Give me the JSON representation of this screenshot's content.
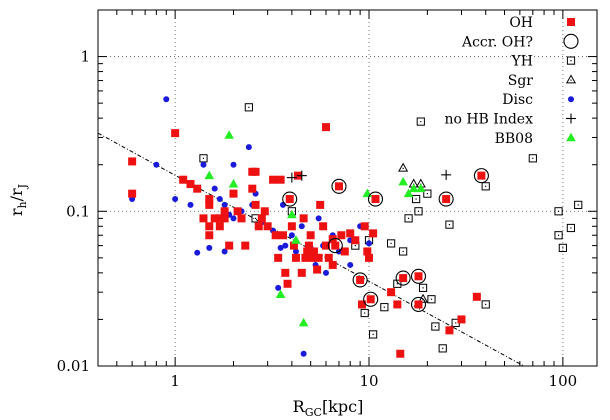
{
  "chart_data": {
    "type": "scatter",
    "xlabel_main": "R",
    "xlabel_sub": "GC",
    "xlabel_unit": "[kpc]",
    "ylabel_main": "r",
    "ylabel_sub1": "h",
    "ylabel_sep": "/r",
    "ylabel_sub2": "J",
    "xscale": "log",
    "yscale": "log",
    "xlim": [
      0.4,
      150
    ],
    "ylim": [
      0.01,
      2
    ],
    "grid": "dotted, at major decades",
    "legend_position": "top-right",
    "x_ticks": [
      1,
      10,
      100
    ],
    "x_tick_labels": [
      "1",
      "10",
      "100"
    ],
    "y_ticks": [
      0.01,
      0.1,
      1
    ],
    "y_tick_labels": [
      "0.01",
      "0.1",
      "1"
    ],
    "trend_line": {
      "style": "dash-dot",
      "points": [
        [
          0.4,
          0.32
        ],
        [
          70,
          0.0093
        ]
      ]
    },
    "series": [
      {
        "name": "OH",
        "marker": "filled-square",
        "color": "#ee1111",
        "points": [
          [
            0.6,
            0.21
          ],
          [
            0.6,
            0.13
          ],
          [
            1.0,
            0.32
          ],
          [
            1.1,
            0.16
          ],
          [
            1.2,
            0.15
          ],
          [
            1.3,
            0.14
          ],
          [
            1.4,
            0.09
          ],
          [
            1.5,
            0.11
          ],
          [
            1.5,
            0.12
          ],
          [
            1.5,
            0.08
          ],
          [
            1.5,
            0.07
          ],
          [
            1.6,
            0.09
          ],
          [
            1.7,
            0.09
          ],
          [
            1.7,
            0.08
          ],
          [
            1.8,
            0.1
          ],
          [
            1.8,
            0.09
          ],
          [
            1.9,
            0.06
          ],
          [
            2.0,
            0.13
          ],
          [
            2.1,
            0.1
          ],
          [
            2.2,
            0.09
          ],
          [
            2.3,
            0.06
          ],
          [
            2.5,
            0.18
          ],
          [
            2.5,
            0.14
          ],
          [
            2.6,
            0.18
          ],
          [
            2.6,
            0.11
          ],
          [
            2.7,
            0.08
          ],
          [
            2.8,
            0.09
          ],
          [
            2.9,
            0.1
          ],
          [
            3.0,
            0.08
          ],
          [
            3.2,
            0.16
          ],
          [
            3.3,
            0.07
          ],
          [
            3.4,
            0.05
          ],
          [
            3.5,
            0.16
          ],
          [
            3.6,
            0.07
          ],
          [
            3.7,
            0.04
          ],
          [
            3.8,
            0.034
          ],
          [
            3.9,
            0.12
          ],
          [
            4.0,
            0.08
          ],
          [
            4.1,
            0.06
          ],
          [
            4.2,
            0.05
          ],
          [
            4.3,
            0.17
          ],
          [
            4.5,
            0.04
          ],
          [
            4.6,
            0.09
          ],
          [
            4.7,
            0.05
          ],
          [
            4.8,
            0.055
          ],
          [
            4.9,
            0.06
          ],
          [
            5.0,
            0.07
          ],
          [
            5.1,
            0.05
          ],
          [
            5.2,
            0.055
          ],
          [
            5.4,
            0.042
          ],
          [
            5.5,
            0.05
          ],
          [
            5.6,
            0.11
          ],
          [
            5.8,
            0.08
          ],
          [
            6.0,
            0.35
          ],
          [
            6.0,
            0.06
          ],
          [
            6.2,
            0.05
          ],
          [
            6.5,
            0.045
          ],
          [
            6.5,
            0.066
          ],
          [
            6.7,
            0.06
          ],
          [
            7.0,
            0.145
          ],
          [
            7.2,
            0.07
          ],
          [
            7.5,
            0.055
          ],
          [
            8.0,
            0.072
          ],
          [
            8.5,
            0.065
          ],
          [
            9.0,
            0.036
          ],
          [
            9.2,
            0.025
          ],
          [
            9.5,
            0.08
          ],
          [
            9.8,
            0.055
          ],
          [
            10.0,
            0.05
          ],
          [
            10.2,
            0.027
          ],
          [
            10.5,
            0.072
          ],
          [
            10.8,
            0.12
          ],
          [
            13.0,
            0.03
          ],
          [
            14.0,
            0.025
          ],
          [
            15.0,
            0.037
          ],
          [
            18.0,
            0.038
          ],
          [
            18.0,
            0.025
          ],
          [
            25.0,
            0.12
          ],
          [
            26.0,
            0.017
          ],
          [
            30.0,
            0.02
          ],
          [
            36.0,
            0.028
          ],
          [
            38.0,
            0.17
          ],
          [
            14.5,
            0.012
          ]
        ]
      },
      {
        "name": "Accr. OH?",
        "marker": "open-circle",
        "color": "#000000",
        "points": [
          [
            3.9,
            0.12
          ],
          [
            6.7,
            0.06
          ],
          [
            7.0,
            0.145
          ],
          [
            9.0,
            0.036
          ],
          [
            10.2,
            0.027
          ],
          [
            10.8,
            0.12
          ],
          [
            15.0,
            0.037
          ],
          [
            18.0,
            0.038
          ],
          [
            18.0,
            0.025
          ],
          [
            25.0,
            0.12
          ],
          [
            38.0,
            0.17
          ]
        ]
      },
      {
        "name": "YH",
        "marker": "open-square",
        "color": "#000000",
        "points": [
          [
            1.4,
            0.22
          ],
          [
            2.4,
            0.47
          ],
          [
            2.6,
            0.09
          ],
          [
            4.0,
            0.1
          ],
          [
            8.5,
            0.06
          ],
          [
            9.5,
            0.022
          ],
          [
            10.0,
            0.065
          ],
          [
            10.5,
            0.016
          ],
          [
            12.0,
            0.024
          ],
          [
            13.0,
            0.062
          ],
          [
            14.0,
            0.034
          ],
          [
            15.0,
            0.055
          ],
          [
            16.0,
            0.09
          ],
          [
            17.5,
            0.12
          ],
          [
            18.0,
            0.1
          ],
          [
            18.5,
            0.38
          ],
          [
            19.0,
            0.032
          ],
          [
            20.0,
            0.13
          ],
          [
            21.0,
            0.027
          ],
          [
            22.0,
            0.018
          ],
          [
            24.0,
            0.013
          ],
          [
            26.0,
            0.082
          ],
          [
            28.0,
            0.019
          ],
          [
            40.0,
            0.025
          ],
          [
            40.0,
            0.145
          ],
          [
            70.0,
            0.22
          ],
          [
            95.0,
            0.07
          ],
          [
            95.0,
            0.1
          ],
          [
            100.0,
            0.058
          ],
          [
            110.0,
            0.078
          ],
          [
            120.0,
            0.11
          ],
          [
            45.0,
            0.009
          ]
        ]
      },
      {
        "name": "Sgr",
        "marker": "open-triangle",
        "color": "#000000",
        "points": [
          [
            15.0,
            0.19
          ],
          [
            17.0,
            0.15
          ],
          [
            18.5,
            0.15
          ],
          [
            19.0,
            0.027
          ]
        ]
      },
      {
        "name": "Disc",
        "marker": "filled-circle",
        "color": "#1a1adc",
        "points": [
          [
            0.6,
            0.12
          ],
          [
            0.8,
            0.2
          ],
          [
            0.9,
            0.53
          ],
          [
            1.0,
            0.12
          ],
          [
            1.2,
            0.11
          ],
          [
            1.3,
            0.054
          ],
          [
            1.4,
            0.2
          ],
          [
            1.5,
            0.11
          ],
          [
            1.5,
            0.058
          ],
          [
            1.6,
            0.14
          ],
          [
            1.7,
            0.12
          ],
          [
            1.8,
            0.11
          ],
          [
            1.8,
            0.055
          ],
          [
            1.9,
            0.095
          ],
          [
            2.0,
            0.2
          ],
          [
            2.0,
            0.09
          ],
          [
            2.2,
            0.1
          ],
          [
            2.3,
            0.06
          ],
          [
            2.4,
            0.26
          ],
          [
            2.5,
            0.11
          ],
          [
            2.6,
            0.13
          ],
          [
            2.8,
            0.085
          ],
          [
            3.0,
            0.08
          ],
          [
            3.2,
            0.075
          ],
          [
            3.4,
            0.032
          ],
          [
            3.5,
            0.058
          ],
          [
            3.6,
            0.11
          ],
          [
            3.7,
            0.06
          ],
          [
            4.0,
            0.07
          ],
          [
            4.2,
            0.055
          ],
          [
            4.5,
            0.08
          ],
          [
            4.6,
            0.012
          ],
          [
            5.0,
            0.058
          ],
          [
            5.3,
            0.045
          ],
          [
            5.5,
            0.09
          ],
          [
            5.8,
            0.06
          ],
          [
            6.0,
            0.04
          ],
          [
            6.5,
            0.07
          ],
          [
            7.0,
            0.055
          ],
          [
            8.0,
            0.065
          ],
          [
            8.0,
            0.045
          ],
          [
            9.0,
            0.08
          ],
          [
            10.0,
            0.062
          ]
        ]
      },
      {
        "name": "no HB Index",
        "marker": "plus",
        "color": "#000000",
        "points": [
          [
            4.0,
            0.165
          ],
          [
            4.5,
            0.17
          ],
          [
            25.0,
            0.172
          ]
        ]
      },
      {
        "name": "BB08",
        "marker": "filled-triangle",
        "color": "#22ee22",
        "points": [
          [
            1.5,
            0.17
          ],
          [
            1.9,
            0.31
          ],
          [
            2.0,
            0.15
          ],
          [
            3.5,
            0.029
          ],
          [
            4.0,
            0.095
          ],
          [
            4.2,
            0.065
          ],
          [
            4.6,
            0.019
          ],
          [
            9.8,
            0.13
          ],
          [
            15.0,
            0.155
          ],
          [
            16.0,
            0.13
          ],
          [
            17.0,
            0.14
          ],
          [
            18.5,
            0.14
          ]
        ]
      }
    ]
  }
}
